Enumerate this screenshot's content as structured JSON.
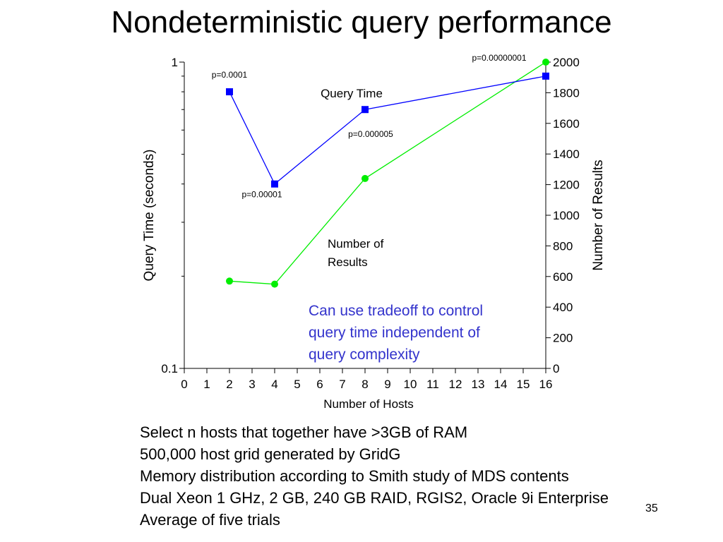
{
  "slide": {
    "title": "Nondeterministic query performance",
    "bullets": [
      "Select n hosts that together have >3GB of RAM",
      "500,000 host grid generated by GridG",
      "Memory distribution according to Smith study of MDS contents",
      "Dual Xeon 1 GHz, 2 GB, 240 GB RAID, RGIS2, Oracle 9i Enterprise",
      "Average of five trials"
    ],
    "page_number": "35"
  },
  "chart_data": {
    "type": "line",
    "xlabel": "Number of Hosts",
    "ylabel_left": "Query Time (seconds)",
    "ylabel_right": "Number of Results",
    "x_ticks": [
      0,
      1,
      2,
      3,
      4,
      5,
      6,
      7,
      8,
      9,
      10,
      11,
      12,
      13,
      14,
      15,
      16
    ],
    "xlim": [
      0,
      16
    ],
    "y_left": {
      "scale": "log",
      "lim": [
        0.1,
        1
      ],
      "tick_labels": [
        "0.1",
        "1"
      ]
    },
    "y_right": {
      "scale": "linear",
      "lim": [
        0,
        2000
      ],
      "ticks": [
        0,
        200,
        400,
        600,
        800,
        1000,
        1200,
        1400,
        1600,
        1800,
        2000
      ]
    },
    "grid": false,
    "series": [
      {
        "name": "Query Time",
        "axis": "left",
        "color": "#0000ff",
        "marker": "square",
        "x": [
          2,
          4,
          8,
          16
        ],
        "y": [
          0.8,
          0.4,
          0.7,
          0.9
        ],
        "point_labels": [
          "p=0.0001",
          "p=0.00001",
          "p=0.000005",
          "p=0.00000001"
        ]
      },
      {
        "name": "Number of Results",
        "axis": "right",
        "color": "#00ee00",
        "marker": "circle",
        "x": [
          2,
          4,
          8,
          16
        ],
        "y": [
          570,
          550,
          1240,
          2000
        ]
      }
    ],
    "annotation": {
      "text": [
        "Can use tradeoff to control",
        "query time independent of",
        "query complexity"
      ],
      "color": "#3333cc"
    }
  }
}
